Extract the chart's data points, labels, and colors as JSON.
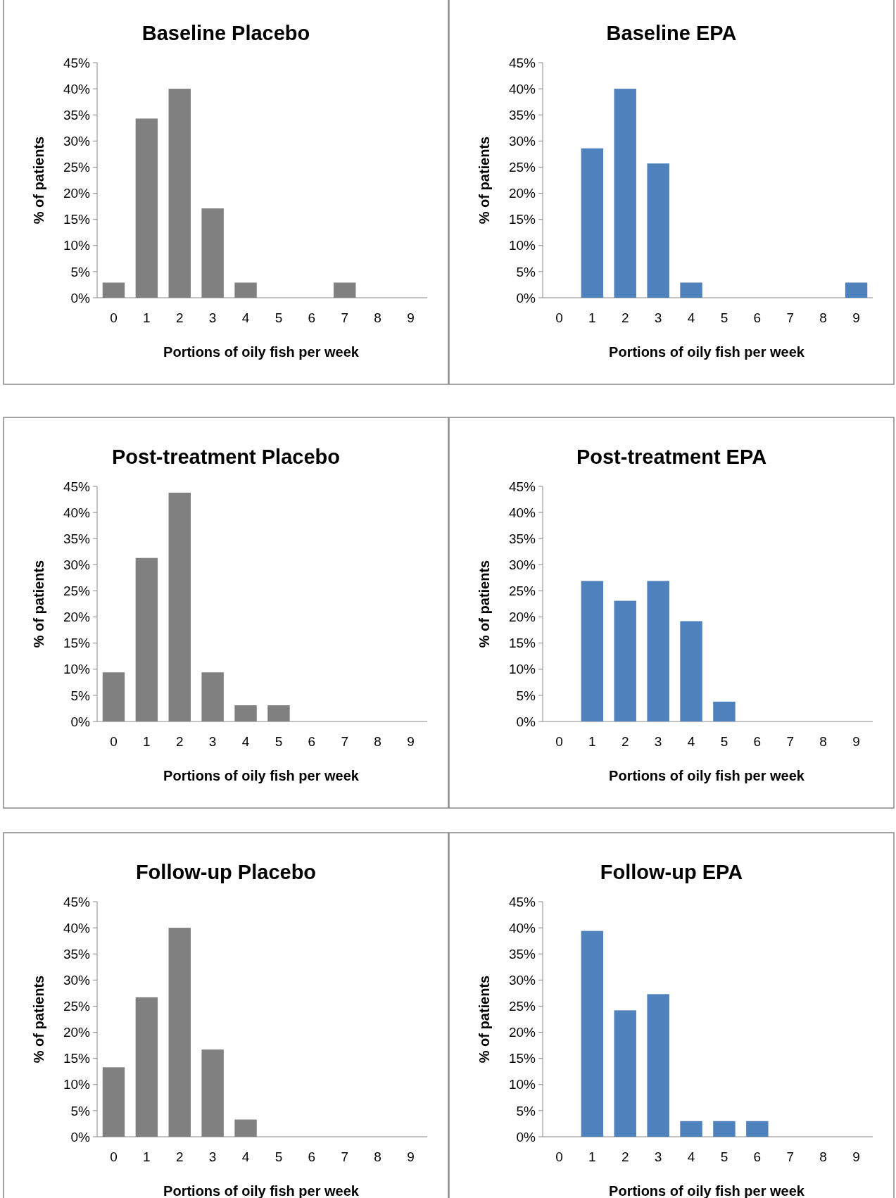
{
  "chart_data": [
    {
      "type": "bar",
      "title": "Baseline Placebo",
      "xlabel": "Portions of oily fish per week",
      "ylabel": "% of patients",
      "categories": [
        "0",
        "1",
        "2",
        "3",
        "4",
        "5",
        "6",
        "7",
        "8",
        "9"
      ],
      "values": [
        2.9,
        34.3,
        40,
        17.1,
        2.9,
        0,
        0,
        2.9,
        0,
        0
      ],
      "color": "#808080",
      "ylim": [
        0,
        45
      ],
      "yticks": [
        {
          "value": 0,
          "label": "0%"
        },
        {
          "value": 5,
          "label": "5%"
        },
        {
          "value": 10,
          "label": "10%"
        },
        {
          "value": 15,
          "label": "15%"
        },
        {
          "value": 20,
          "label": "20%"
        },
        {
          "value": 25,
          "label": "25%"
        },
        {
          "value": 30,
          "label": "30%"
        },
        {
          "value": 35,
          "label": "35%"
        },
        {
          "value": 40,
          "label": "40%"
        },
        {
          "value": 45,
          "label": "45%"
        }
      ]
    },
    {
      "type": "bar",
      "title": "Baseline EPA",
      "xlabel": "Portions of oily fish per week",
      "ylabel": "% of patients",
      "categories": [
        "0",
        "1",
        "2",
        "3",
        "4",
        "5",
        "6",
        "7",
        "8",
        "9"
      ],
      "values": [
        0,
        28.6,
        40,
        25.7,
        2.9,
        0,
        0,
        0,
        0,
        2.9
      ],
      "color": "#4f81bd",
      "ylim": [
        0,
        45
      ],
      "yticks": [
        {
          "value": 0,
          "label": "0%"
        },
        {
          "value": 5,
          "label": "5%"
        },
        {
          "value": 10,
          "label": "10%"
        },
        {
          "value": 15,
          "label": "15%"
        },
        {
          "value": 20,
          "label": "20%"
        },
        {
          "value": 25,
          "label": "25%"
        },
        {
          "value": 30,
          "label": "30%"
        },
        {
          "value": 35,
          "label": "35%"
        },
        {
          "value": 40,
          "label": "40%"
        },
        {
          "value": 45,
          "label": "45%"
        }
      ]
    },
    {
      "type": "bar",
      "title": "Post-treatment Placebo",
      "xlabel": "Portions of oily fish per week",
      "ylabel": "% of patients",
      "categories": [
        "0",
        "1",
        "2",
        "3",
        "4",
        "5",
        "6",
        "7",
        "8",
        "9"
      ],
      "values": [
        9.4,
        31.3,
        43.8,
        9.4,
        3.1,
        3.1,
        0,
        0,
        0,
        0
      ],
      "color": "#808080",
      "ylim": [
        0,
        45
      ],
      "yticks": [
        {
          "value": 0,
          "label": "0%"
        },
        {
          "value": 5,
          "label": "5%"
        },
        {
          "value": 10,
          "label": "10%"
        },
        {
          "value": 15,
          "label": "15%"
        },
        {
          "value": 20,
          "label": "20%"
        },
        {
          "value": 25,
          "label": "25%"
        },
        {
          "value": 30,
          "label": "30%"
        },
        {
          "value": 35,
          "label": "35%"
        },
        {
          "value": 40,
          "label": "40%"
        },
        {
          "value": 45,
          "label": "45%"
        }
      ]
    },
    {
      "type": "bar",
      "title": "Post-treatment EPA",
      "xlabel": "Portions of oily fish per week",
      "ylabel": "% of patients",
      "categories": [
        "0",
        "1",
        "2",
        "3",
        "4",
        "5",
        "6",
        "7",
        "8",
        "9"
      ],
      "values": [
        0,
        26.9,
        23.1,
        26.9,
        19.2,
        3.8,
        0,
        0,
        0,
        0
      ],
      "color": "#4f81bd",
      "ylim": [
        0,
        45
      ],
      "yticks": [
        {
          "value": 0,
          "label": "0%"
        },
        {
          "value": 5,
          "label": "5%"
        },
        {
          "value": 10,
          "label": "10%"
        },
        {
          "value": 15,
          "label": "15%"
        },
        {
          "value": 20,
          "label": "20%"
        },
        {
          "value": 25,
          "label": "25%"
        },
        {
          "value": 30,
          "label": "30%"
        },
        {
          "value": 35,
          "label": "35%"
        },
        {
          "value": 40,
          "label": "40%"
        },
        {
          "value": 45,
          "label": "45%"
        }
      ]
    },
    {
      "type": "bar",
      "title": "Follow-up Placebo",
      "xlabel": "Portions of oily fish per week",
      "ylabel": "% of patients",
      "categories": [
        "0",
        "1",
        "2",
        "3",
        "4",
        "5",
        "6",
        "7",
        "8",
        "9"
      ],
      "values": [
        13.3,
        26.7,
        40,
        16.7,
        3.3,
        0,
        0,
        0,
        0,
        0
      ],
      "color": "#808080",
      "ylim": [
        0,
        45
      ],
      "yticks": [
        {
          "value": 0,
          "label": "0%"
        },
        {
          "value": 5,
          "label": "5%"
        },
        {
          "value": 10,
          "label": "10%"
        },
        {
          "value": 15,
          "label": "15%"
        },
        {
          "value": 20,
          "label": "20%"
        },
        {
          "value": 25,
          "label": "25%"
        },
        {
          "value": 30,
          "label": "30%"
        },
        {
          "value": 35,
          "label": "35%"
        },
        {
          "value": 40,
          "label": "40%"
        },
        {
          "value": 45,
          "label": "45%"
        }
      ]
    },
    {
      "type": "bar",
      "title": "Follow-up EPA",
      "xlabel": "Portions of oily fish per week",
      "ylabel": "% of patients",
      "categories": [
        "0",
        "1",
        "2",
        "3",
        "4",
        "5",
        "6",
        "7",
        "8",
        "9"
      ],
      "values": [
        0,
        39.4,
        24.2,
        27.3,
        3,
        3,
        3,
        0,
        0,
        0
      ],
      "color": "#4f81bd",
      "ylim": [
        0,
        45
      ],
      "yticks": [
        {
          "value": 0,
          "label": "0%"
        },
        {
          "value": 5,
          "label": "5%"
        },
        {
          "value": 10,
          "label": "10%"
        },
        {
          "value": 15,
          "label": "15%"
        },
        {
          "value": 20,
          "label": "20%"
        },
        {
          "value": 25,
          "label": "25%"
        },
        {
          "value": 30,
          "label": "30%"
        },
        {
          "value": 35,
          "label": "35%"
        },
        {
          "value": 40,
          "label": "40%"
        },
        {
          "value": 45,
          "label": "45%"
        }
      ]
    }
  ]
}
